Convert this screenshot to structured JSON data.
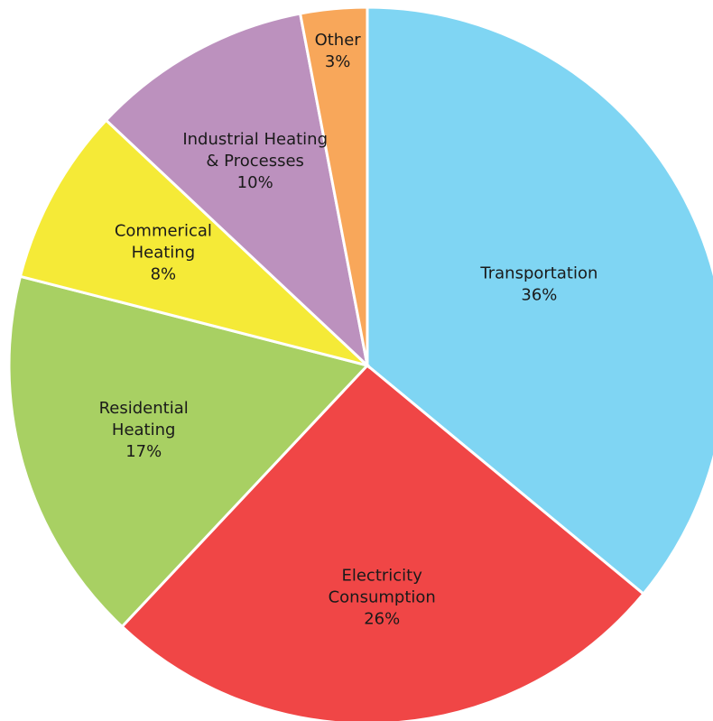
{
  "chart_data": {
    "type": "pie",
    "categories": [
      "Transportation",
      "Electricity\nConsumption",
      "Residential\nHeating",
      "Commerical\nHeating",
      "Industrial Heating\n& Processes",
      "Other"
    ],
    "values": [
      36,
      26,
      17,
      8,
      10,
      3
    ],
    "value_labels": [
      "36%",
      "26%",
      "17%",
      "8%",
      "10%",
      "3%"
    ],
    "colors": [
      "#7fd5f3",
      "#f04646",
      "#a8d063",
      "#f5ea37",
      "#bc91be",
      "#f8a75a"
    ]
  }
}
